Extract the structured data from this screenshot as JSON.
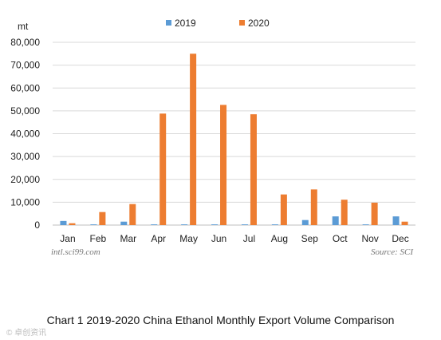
{
  "chart_data": {
    "type": "bar",
    "unit": "mt",
    "categories": [
      "Jan",
      "Feb",
      "Mar",
      "Apr",
      "May",
      "Jun",
      "Jul",
      "Aug",
      "Sep",
      "Oct",
      "Nov",
      "Dec"
    ],
    "series": [
      {
        "name": "2019",
        "color": "#5b9bd5",
        "values": [
          1800,
          300,
          1500,
          300,
          300,
          300,
          300,
          300,
          2200,
          3800,
          300,
          3800
        ]
      },
      {
        "name": "2020",
        "color": "#ed7d31",
        "values": [
          800,
          5700,
          9200,
          48800,
          75000,
          52600,
          48500,
          13400,
          15600,
          11100,
          9800,
          1500
        ]
      }
    ],
    "ylim": [
      0,
      80000
    ],
    "yticks": [
      "0",
      "10,000",
      "20,000",
      "30,000",
      "40,000",
      "50,000",
      "60,000",
      "70,000",
      "80,000"
    ],
    "grid": true,
    "legend": "top-center"
  },
  "watermark": "intl.sci99.com",
  "source": "Source: SCI",
  "caption": "Chart 1 2019-2020 China Ethanol Monthly Export Volume Comparison",
  "credit": "© 卓创资讯"
}
